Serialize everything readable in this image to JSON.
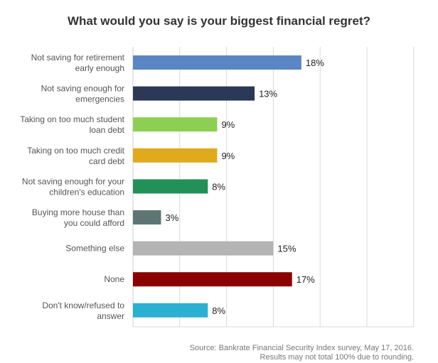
{
  "chart_data": {
    "type": "bar",
    "orientation": "horizontal",
    "title": "What would you say is your biggest financial regret?",
    "categories": [
      [
        "Not saving for retirement",
        "early enough"
      ],
      [
        "Not saving enough for",
        "emergencies"
      ],
      [
        "Taking on too much student",
        "loan debt"
      ],
      [
        "Taking on too much credit",
        "card debt"
      ],
      [
        "Not saving enough for your",
        "children's education"
      ],
      [
        "Buying more house than",
        "you could afford"
      ],
      [
        "Something else"
      ],
      [
        "None"
      ],
      [
        "Don't know/refused to",
        "answer"
      ]
    ],
    "values": [
      18,
      13,
      9,
      9,
      8,
      3,
      15,
      17,
      8
    ],
    "value_labels": [
      "18%",
      "13%",
      "9%",
      "9%",
      "8%",
      "3%",
      "15%",
      "17%",
      "8%"
    ],
    "colors": [
      "#5b86c4",
      "#2b3856",
      "#8ccf52",
      "#e0aa1d",
      "#229157",
      "#5e7576",
      "#b4b4b4",
      "#8b0000",
      "#2ab0d1"
    ],
    "xlim": [
      0,
      25
    ],
    "grid": true,
    "legend": "none"
  },
  "footer": {
    "line1": "Source: Bankrate Financial Security Index survey, May 17, 2016.",
    "line2": "Results may not total 100% due to rounding."
  }
}
